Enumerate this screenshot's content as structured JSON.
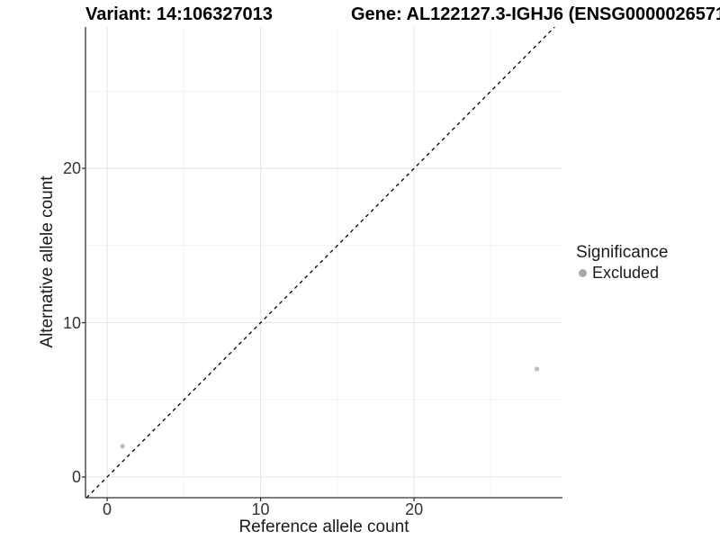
{
  "chart_data": {
    "type": "scatter",
    "title_left": "Variant: 14:106327013",
    "title_right": "Gene: AL122127.3-IGHJ6 (ENSG0000026571",
    "xlabel": "Reference allele count",
    "ylabel": "Alternative allele count",
    "xlim": [
      -1.41,
      29.67
    ],
    "ylim": [
      -1.34,
      29.16
    ],
    "x_major_ticks": [
      0,
      10,
      20
    ],
    "y_major_ticks": [
      0,
      10,
      20
    ],
    "x_minor_ticks": [
      5,
      15,
      25
    ],
    "y_minor_ticks": [
      5,
      15,
      25
    ],
    "grid": true,
    "identity_line": {
      "type": "dashed",
      "color": "#000000",
      "slope": 1,
      "intercept": 0
    },
    "series": [
      {
        "name": "Excluded",
        "color": "#bebebe",
        "points": [
          {
            "x": 1,
            "y": 2
          },
          {
            "x": 28,
            "y": 7
          }
        ]
      }
    ],
    "legend": {
      "position": "right",
      "title": "Significance",
      "items": [
        {
          "label": "Excluded",
          "color": "#aaaaaa"
        }
      ]
    },
    "colors": {
      "background": "#ffffff",
      "panel_background": "#ffffff",
      "grid_major": "#e4e4e4",
      "grid_minor": "#f2f2f2",
      "axis_line": "#333333",
      "tick_text": "#333333",
      "title_text": "#000000"
    }
  }
}
